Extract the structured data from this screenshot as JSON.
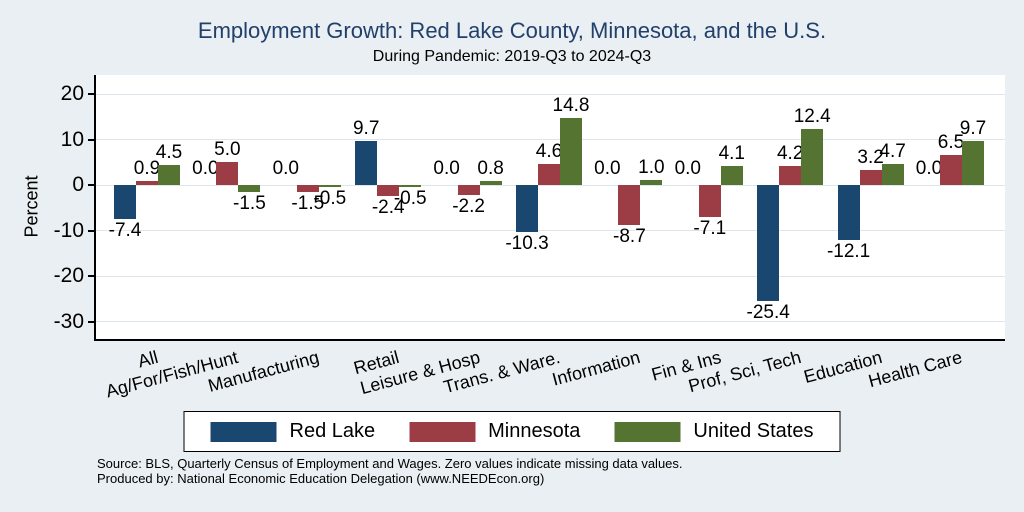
{
  "header": {
    "title": "Employment Growth: Red Lake County, Minnesota, and the U.S.",
    "subtitle": "During Pandemic: 2019-Q3 to 2024-Q3"
  },
  "chart_data": {
    "type": "bar",
    "title": "Employment Growth: Red Lake County, Minnesota, and the U.S.",
    "subtitle": "During Pandemic: 2019-Q3 to 2024-Q3",
    "xlabel": "",
    "ylabel": "Percent",
    "ylim": [
      -34,
      24
    ],
    "yticks": [
      20,
      10,
      0,
      -10,
      -20,
      -30
    ],
    "grid": true,
    "value_labels": true,
    "value_label_format": "one-decimal",
    "legend_position": "bottom-center",
    "categories": [
      "All",
      "Ag/For/Fish/Hunt",
      "Manufacturing",
      "Retail",
      "Leisure & Hosp",
      "Trans. & Ware.",
      "Information",
      "Fin & Ins",
      "Prof, Sci, Tech",
      "Education",
      "Health Care"
    ],
    "series": [
      {
        "name": "Red Lake",
        "color": "#1a476f",
        "values": [
          -7.4,
          0.0,
          0.0,
          9.7,
          0.0,
          -10.3,
          0.0,
          0.0,
          -25.4,
          -12.1,
          0.0
        ]
      },
      {
        "name": "Minnesota",
        "color": "#9c3d45",
        "values": [
          0.9,
          5.0,
          -1.5,
          -2.4,
          -2.2,
          4.6,
          -8.7,
          -7.1,
          4.2,
          3.2,
          6.5
        ]
      },
      {
        "name": "United States",
        "color": "#567431",
        "values": [
          4.5,
          -1.5,
          -0.5,
          -0.5,
          0.8,
          14.8,
          1.0,
          4.1,
          12.4,
          4.7,
          9.7
        ]
      }
    ],
    "note": "Zero values indicate missing data values."
  },
  "colors": {
    "background": "#e9eff2",
    "plot_background": "#ffffff",
    "gridline": "#dde6ec",
    "axis": "#000000",
    "title": "#21406b"
  },
  "footer": {
    "source_line": "Source: BLS, Quarterly Census of Employment and Wages. Zero values indicate missing data values.",
    "produced_line": "Produced by: National Economic Education Delegation (www.NEEDEcon.org)"
  }
}
